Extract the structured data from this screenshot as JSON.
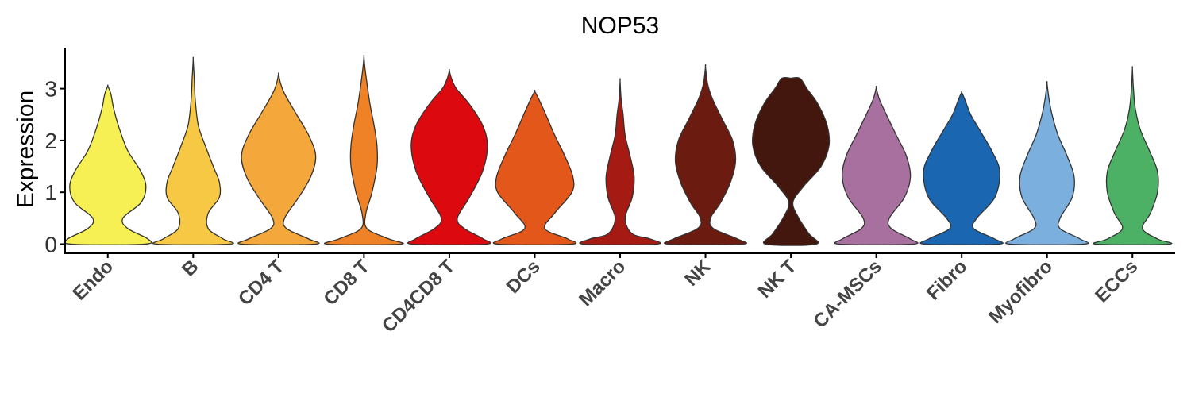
{
  "chart_data": {
    "type": "violin",
    "title": "NOP53",
    "xlabel": "",
    "ylabel": "Expression",
    "ylim": [
      -0.2,
      3.8
    ],
    "yticks": [
      0,
      1,
      2,
      3
    ],
    "grid": false,
    "legend": "none",
    "categories": [
      "Endo",
      "B",
      "CD4 T",
      "CD8 T",
      "CD4CD8 T",
      "DCs",
      "Macro",
      "NK",
      "NK T",
      "CA-MSCs",
      "Fibro",
      "Myofibro",
      "ECCs"
    ],
    "series": [
      {
        "category": "Endo",
        "color": "#F7F055",
        "max": 3.05,
        "profile": [
          [
            0,
            0.36
          ],
          [
            0.1,
            0.4
          ],
          [
            0.3,
            0.2
          ],
          [
            0.5,
            0.15
          ],
          [
            0.8,
            0.33
          ],
          [
            1.1,
            0.38
          ],
          [
            1.4,
            0.33
          ],
          [
            1.8,
            0.2
          ],
          [
            2.2,
            0.12
          ],
          [
            2.6,
            0.06
          ],
          [
            2.9,
            0.03
          ],
          [
            3.05,
            0
          ]
        ]
      },
      {
        "category": "B",
        "color": "#F7C844",
        "max": 3.56,
        "profile": [
          [
            0,
            0.36
          ],
          [
            0.1,
            0.3
          ],
          [
            0.3,
            0.15
          ],
          [
            0.6,
            0.15
          ],
          [
            0.9,
            0.26
          ],
          [
            1.2,
            0.26
          ],
          [
            1.5,
            0.2
          ],
          [
            1.9,
            0.12
          ],
          [
            2.3,
            0.05
          ],
          [
            2.8,
            0.02
          ],
          [
            3.2,
            0.01
          ],
          [
            3.56,
            0
          ]
        ]
      },
      {
        "category": "CD4 T",
        "color": "#F4A73A",
        "max": 3.28,
        "profile": [
          [
            0,
            0.36
          ],
          [
            0.1,
            0.3
          ],
          [
            0.3,
            0.08
          ],
          [
            0.5,
            0.06
          ],
          [
            0.9,
            0.2
          ],
          [
            1.3,
            0.32
          ],
          [
            1.7,
            0.37
          ],
          [
            2.1,
            0.3
          ],
          [
            2.5,
            0.18
          ],
          [
            2.9,
            0.06
          ],
          [
            3.1,
            0.02
          ],
          [
            3.28,
            0
          ]
        ]
      },
      {
        "category": "CD8 T",
        "color": "#EF8226",
        "max": 3.62,
        "profile": [
          [
            0,
            0.36
          ],
          [
            0.1,
            0.25
          ],
          [
            0.3,
            0.03
          ],
          [
            0.6,
            0.02
          ],
          [
            1.0,
            0.08
          ],
          [
            1.5,
            0.13
          ],
          [
            1.9,
            0.13
          ],
          [
            2.3,
            0.1
          ],
          [
            2.7,
            0.06
          ],
          [
            3.1,
            0.03
          ],
          [
            3.4,
            0.01
          ],
          [
            3.62,
            0
          ]
        ]
      },
      {
        "category": "CD4CD8 T",
        "color": "#DC0A0E",
        "max": 3.35,
        "profile": [
          [
            0,
            0.36
          ],
          [
            0.1,
            0.34
          ],
          [
            0.3,
            0.15
          ],
          [
            0.5,
            0.08
          ],
          [
            0.9,
            0.2
          ],
          [
            1.4,
            0.33
          ],
          [
            1.9,
            0.38
          ],
          [
            2.3,
            0.33
          ],
          [
            2.7,
            0.2
          ],
          [
            3.0,
            0.07
          ],
          [
            3.2,
            0.02
          ],
          [
            3.35,
            0
          ]
        ]
      },
      {
        "category": "DCs",
        "color": "#E4571B",
        "max": 2.95,
        "profile": [
          [
            0,
            0.36
          ],
          [
            0.1,
            0.33
          ],
          [
            0.3,
            0.1
          ],
          [
            0.6,
            0.2
          ],
          [
            1.0,
            0.37
          ],
          [
            1.3,
            0.38
          ],
          [
            1.7,
            0.3
          ],
          [
            2.1,
            0.2
          ],
          [
            2.5,
            0.11
          ],
          [
            2.8,
            0.04
          ],
          [
            2.95,
            0
          ]
        ]
      },
      {
        "category": "Macro",
        "color": "#A51A13",
        "max": 3.15,
        "profile": [
          [
            0,
            0.36
          ],
          [
            0.1,
            0.3
          ],
          [
            0.2,
            0.12
          ],
          [
            0.5,
            0.05
          ],
          [
            0.9,
            0.12
          ],
          [
            1.3,
            0.14
          ],
          [
            1.7,
            0.1
          ],
          [
            2.1,
            0.05
          ],
          [
            2.5,
            0.03
          ],
          [
            2.8,
            0.01
          ],
          [
            3.15,
            0
          ]
        ]
      },
      {
        "category": "NK",
        "color": "#6B1B0F",
        "max": 3.42,
        "profile": [
          [
            0,
            0.36
          ],
          [
            0.1,
            0.32
          ],
          [
            0.3,
            0.08
          ],
          [
            0.5,
            0.05
          ],
          [
            0.8,
            0.15
          ],
          [
            1.2,
            0.25
          ],
          [
            1.6,
            0.3
          ],
          [
            2.0,
            0.27
          ],
          [
            2.4,
            0.17
          ],
          [
            2.8,
            0.07
          ],
          [
            3.1,
            0.02
          ],
          [
            3.42,
            0
          ]
        ]
      },
      {
        "category": "NK T",
        "color": "#43170E",
        "max": 3.2,
        "profile": [
          [
            0,
            0.25
          ],
          [
            0.2,
            0.18
          ],
          [
            0.5,
            0.08
          ],
          [
            0.8,
            0.02
          ],
          [
            1.1,
            0.12
          ],
          [
            1.5,
            0.3
          ],
          [
            1.9,
            0.38
          ],
          [
            2.3,
            0.36
          ],
          [
            2.7,
            0.27
          ],
          [
            3.0,
            0.16
          ],
          [
            3.2,
            0.09
          ],
          [
            3.2,
            0
          ]
        ]
      },
      {
        "category": "CA-MSCs",
        "color": "#A8709E",
        "max": 3.02,
        "profile": [
          [
            0,
            0.36
          ],
          [
            0.1,
            0.34
          ],
          [
            0.3,
            0.15
          ],
          [
            0.5,
            0.13
          ],
          [
            0.9,
            0.28
          ],
          [
            1.3,
            0.34
          ],
          [
            1.7,
            0.3
          ],
          [
            2.1,
            0.2
          ],
          [
            2.5,
            0.1
          ],
          [
            2.8,
            0.03
          ],
          [
            3.02,
            0
          ]
        ]
      },
      {
        "category": "Fibro",
        "color": "#1A66B0",
        "max": 2.93,
        "profile": [
          [
            0,
            0.36
          ],
          [
            0.1,
            0.33
          ],
          [
            0.3,
            0.12
          ],
          [
            0.5,
            0.15
          ],
          [
            0.9,
            0.33
          ],
          [
            1.4,
            0.38
          ],
          [
            1.8,
            0.3
          ],
          [
            2.2,
            0.18
          ],
          [
            2.5,
            0.09
          ],
          [
            2.8,
            0.03
          ],
          [
            2.93,
            0
          ]
        ]
      },
      {
        "category": "Myofibro",
        "color": "#7BAFDE",
        "max": 3.1,
        "profile": [
          [
            0,
            0.36
          ],
          [
            0.1,
            0.33
          ],
          [
            0.3,
            0.13
          ],
          [
            0.5,
            0.13
          ],
          [
            0.9,
            0.25
          ],
          [
            1.3,
            0.27
          ],
          [
            1.7,
            0.2
          ],
          [
            2.1,
            0.11
          ],
          [
            2.5,
            0.05
          ],
          [
            2.8,
            0.02
          ],
          [
            3.1,
            0
          ]
        ]
      },
      {
        "category": "ECCs",
        "color": "#4DB165",
        "max": 3.38,
        "profile": [
          [
            0,
            0.36
          ],
          [
            0.1,
            0.25
          ],
          [
            0.3,
            0.1
          ],
          [
            0.6,
            0.18
          ],
          [
            1.0,
            0.25
          ],
          [
            1.4,
            0.25
          ],
          [
            1.8,
            0.17
          ],
          [
            2.2,
            0.08
          ],
          [
            2.6,
            0.03
          ],
          [
            3.0,
            0.01
          ],
          [
            3.38,
            0
          ]
        ]
      }
    ]
  }
}
